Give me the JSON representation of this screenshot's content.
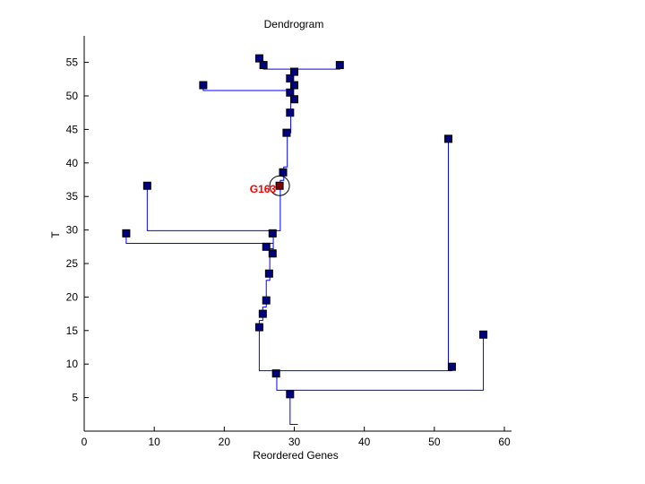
{
  "chart_data": {
    "type": "dendrogram",
    "title": "Dendrogram",
    "xlabel": "Reordered Genes",
    "ylabel": "T",
    "xlim": [
      0,
      61
    ],
    "ylim": [
      0,
      59
    ],
    "xticks": [
      0,
      10,
      20,
      30,
      40,
      50,
      60
    ],
    "yticks": [
      5,
      10,
      15,
      20,
      25,
      30,
      35,
      40,
      45,
      50,
      55
    ],
    "grid": false,
    "colors": {
      "link": "#0000ff",
      "node": "#00007f",
      "highlight": "#7f0000",
      "label": "#ff0000"
    },
    "highlight": {
      "label": "G163",
      "x": 27.9,
      "y": 36.6
    },
    "nodes": [
      [
        25,
        55.6
      ],
      [
        25.6,
        54.6
      ],
      [
        36.5,
        54.6
      ],
      [
        30,
        53.6
      ],
      [
        29.4,
        52.6
      ],
      [
        30,
        51.6
      ],
      [
        17,
        51.6
      ],
      [
        29.4,
        50.5
      ],
      [
        30,
        49.5
      ],
      [
        29.4,
        47.5
      ],
      [
        28.9,
        44.5
      ],
      [
        28.4,
        38.6
      ],
      [
        9,
        36.6
      ],
      [
        26.9,
        29.5
      ],
      [
        6,
        29.5
      ],
      [
        26,
        27.5
      ],
      [
        26.9,
        26.5
      ],
      [
        26.4,
        23.5
      ],
      [
        26,
        19.5
      ],
      [
        25.5,
        17.5
      ],
      [
        25,
        15.5
      ],
      [
        52,
        43.6
      ],
      [
        57,
        14.4
      ],
      [
        52.5,
        9.6
      ],
      [
        27.4,
        8.6
      ],
      [
        29.4,
        5.5
      ]
    ],
    "links": [
      [
        [
          30.5,
          1
        ],
        [
          29.4,
          1
        ],
        [
          29.4,
          6.1
        ]
      ],
      [
        [
          27.5,
          8.6
        ],
        [
          27.5,
          6.1
        ],
        [
          57,
          6.1
        ],
        [
          57,
          14.4
        ]
      ],
      [
        [
          25,
          15.5
        ],
        [
          25,
          9
        ],
        [
          52.5,
          9
        ],
        [
          52.5,
          9.6
        ]
      ],
      [
        [
          52,
          9
        ],
        [
          52,
          43.6
        ]
      ],
      [
        [
          25,
          15.5
        ],
        [
          25,
          16.5
        ],
        [
          25.5,
          16.5
        ],
        [
          25.5,
          18.5
        ],
        [
          26,
          18.5
        ],
        [
          26,
          22.5
        ],
        [
          26.5,
          22.5
        ],
        [
          26.5,
          26
        ],
        [
          27,
          26
        ],
        [
          27,
          27.2
        ],
        [
          26,
          27.2
        ]
      ],
      [
        [
          27,
          27.2
        ],
        [
          27,
          28
        ],
        [
          6,
          28
        ],
        [
          6,
          29.5
        ]
      ],
      [
        [
          27,
          28
        ],
        [
          27,
          29.5
        ]
      ],
      [
        [
          9,
          36.6
        ],
        [
          9,
          29.9
        ],
        [
          28,
          29.9
        ],
        [
          28,
          36.6
        ]
      ],
      [
        [
          27,
          29.5
        ],
        [
          27,
          29.9
        ]
      ],
      [
        [
          28,
          36.6
        ],
        [
          28,
          37.4
        ],
        [
          28.5,
          37.4
        ],
        [
          28.5,
          39.4
        ],
        [
          29,
          39.4
        ],
        [
          29,
          44.5
        ],
        [
          29.5,
          44.5
        ],
        [
          29.5,
          47.5
        ],
        [
          29.5,
          49
        ],
        [
          30,
          49
        ],
        [
          30,
          49.5
        ],
        [
          29.5,
          50.8
        ],
        [
          29.5,
          52.6
        ],
        [
          30,
          53.6
        ],
        [
          30,
          54
        ]
      ],
      [
        [
          17,
          51.6
        ],
        [
          17,
          50.8
        ],
        [
          29.5,
          50.8
        ]
      ],
      [
        [
          25.6,
          54.6
        ],
        [
          25.6,
          54
        ],
        [
          36.5,
          54
        ],
        [
          36.5,
          54.6
        ]
      ],
      [
        [
          25,
          55.6
        ],
        [
          25.6,
          55.2
        ],
        [
          25.6,
          54.6
        ]
      ]
    ]
  }
}
